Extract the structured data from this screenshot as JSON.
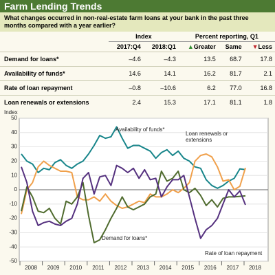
{
  "header": {
    "title": "Farm Lending Trends",
    "question": "What changes occurred in non-real-estate farm loans at your bank in the past three months compared with a year earlier?"
  },
  "table": {
    "group_headers": [
      "Index",
      "Percent reporting, Q1"
    ],
    "columns": [
      "2017:Q4",
      "2018:Q1",
      "Greater",
      "Same",
      "Less"
    ],
    "rows": [
      [
        "Demand for loans*",
        "–4.6",
        "–4.3",
        "13.5",
        "68.7",
        "17.8"
      ],
      [
        "Availability of funds*",
        "14.6",
        "14.1",
        "16.2",
        "81.7",
        "2.1"
      ],
      [
        "Rate of loan repayment",
        "–0.8",
        "–10.6",
        "6.2",
        "77.0",
        "16.8"
      ],
      [
        "Loan renewals or extensions",
        "2.4",
        "15.3",
        "17.1",
        "81.1",
        "1.8"
      ]
    ]
  },
  "chart_data": {
    "type": "line",
    "ylabel": "Index",
    "categories": [
      "2008",
      null,
      null,
      null,
      "2009",
      null,
      null,
      null,
      "2010",
      null,
      null,
      null,
      "2011",
      null,
      null,
      null,
      "2012",
      null,
      null,
      null,
      "2013",
      null,
      null,
      null,
      "2014",
      null,
      null,
      null,
      "2015",
      null,
      null,
      null,
      "2016",
      null,
      null,
      null,
      "2017",
      null,
      null,
      null,
      "2018"
    ],
    "series": [
      {
        "name": "Availability of funds*",
        "color": "#17858a",
        "values": [
          25,
          20,
          18,
          12,
          15,
          14,
          19,
          21,
          17,
          15,
          18,
          20,
          25,
          31,
          38,
          36,
          37,
          44,
          36,
          29,
          31,
          31,
          29,
          27,
          22,
          26,
          28,
          24,
          27,
          22,
          20,
          16,
          15,
          7,
          3,
          1,
          3,
          6,
          8,
          14.6,
          14.1
        ]
      },
      {
        "name": "Loan renewals or extensions",
        "color": "#f0a04b",
        "values": [
          -17,
          0,
          5,
          16,
          20,
          17,
          15,
          13,
          13,
          12,
          -5,
          -7,
          -7,
          -5,
          -8,
          -3,
          -8,
          -11,
          -13,
          -12,
          -10,
          -8,
          -9,
          -3,
          -5,
          -5,
          -3,
          0,
          -2,
          1,
          5,
          20,
          24,
          25,
          23,
          16,
          6,
          7,
          0,
          2.4,
          15.3
        ]
      },
      {
        "name": "Demand for loans*",
        "color": "#4f6b2e",
        "values": [
          -15,
          2,
          -5,
          -15,
          -16,
          -13,
          -20,
          -24,
          -8,
          -10,
          -5,
          5,
          -18,
          -37,
          -35,
          -28,
          -20,
          -13,
          -5,
          -12,
          -14,
          -12,
          -10,
          -5,
          -3,
          13,
          6,
          8,
          13,
          0,
          -2,
          1,
          -4,
          -11,
          -7,
          -12,
          -6,
          -5,
          -5,
          -4.6,
          -4.3
        ]
      },
      {
        "name": "Rate of loan repayment",
        "color": "#55317f",
        "values": [
          16,
          5,
          -15,
          -25,
          -23,
          -22,
          -24,
          -25,
          -22,
          -20,
          -10,
          8,
          12,
          -3,
          9,
          10,
          3,
          17,
          15,
          12,
          15,
          8,
          14,
          7,
          8,
          -5,
          2,
          7,
          7,
          10,
          -5,
          -20,
          -34,
          -28,
          -25,
          -20,
          -10,
          0,
          -5,
          -0.8,
          -10.6
        ]
      }
    ],
    "ylim": [
      -50,
      50
    ],
    "yticks": [
      -50,
      -40,
      -30,
      -20,
      -10,
      0,
      10,
      20,
      30,
      40,
      50
    ],
    "grid": true
  }
}
